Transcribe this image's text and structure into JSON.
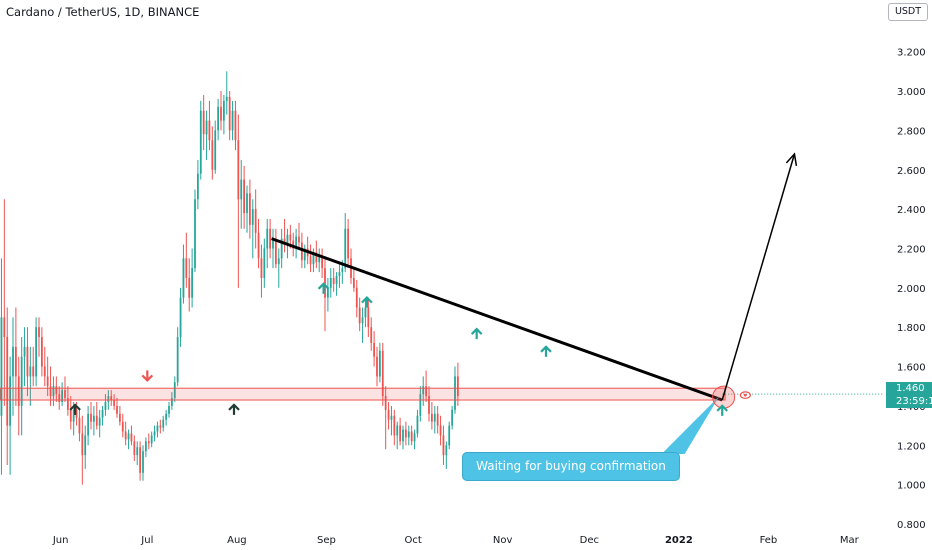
{
  "title": "Cardano / TetherUS, 1D, BINANCE",
  "unit": "USDT",
  "last_price": "1.460",
  "countdown": "23:59:1",
  "annotation": "Waiting for buying confirmation",
  "colors": {
    "up": "#26a69a",
    "down": "#ef5350",
    "zone": "#ef5350",
    "callout": "#4fc3e6",
    "trendline": "#000000"
  },
  "chart_data": {
    "type": "candlestick",
    "ylim": [
      0.8,
      3.3
    ],
    "y_ticks": [
      "3.200",
      "3.000",
      "2.800",
      "2.600",
      "2.400",
      "2.200",
      "2.000",
      "1.800",
      "1.600",
      "1.400",
      "1.200",
      "1.000",
      "0.800"
    ],
    "x_ticks": [
      {
        "label": "Jun",
        "day": 33
      },
      {
        "label": "Jul",
        "day": 63
      },
      {
        "label": "Aug",
        "day": 94
      },
      {
        "label": "Sep",
        "day": 125
      },
      {
        "label": "Oct",
        "day": 155
      },
      {
        "label": "Nov",
        "day": 186
      },
      {
        "label": "Dec",
        "day": 216
      },
      {
        "label": "2022",
        "day": 247,
        "bold": true
      },
      {
        "label": "Feb",
        "day": 278
      },
      {
        "label": "Mar",
        "day": 306
      }
    ],
    "x_range": [
      12,
      318
    ],
    "support_zone": [
      1.43,
      1.49
    ],
    "trendline": [
      {
        "day": 106,
        "price": 2.25
      },
      {
        "day": 262,
        "price": 1.43
      }
    ],
    "projection": [
      {
        "day": 262,
        "price": 1.43
      },
      {
        "day": 287,
        "price": 2.68
      }
    ],
    "marker_arrows": [
      {
        "day": 38,
        "price": 1.385,
        "dir": "up",
        "color": "#1f3b34"
      },
      {
        "day": 63,
        "price": 1.55,
        "dir": "down",
        "color": "#ef5350"
      },
      {
        "day": 93,
        "price": 1.385,
        "dir": "up",
        "color": "#1f3b34"
      },
      {
        "day": 124,
        "price": 2.0,
        "dir": "up",
        "color": "#26a69a"
      },
      {
        "day": 139,
        "price": 1.93,
        "dir": "up",
        "color": "#26a69a"
      },
      {
        "day": 177,
        "price": 1.77,
        "dir": "up",
        "color": "#26a69a"
      },
      {
        "day": 201,
        "price": 1.68,
        "dir": "up",
        "color": "#26a69a"
      },
      {
        "day": 262,
        "price": 1.38,
        "dir": "up",
        "color": "#26a69a"
      }
    ],
    "candles": [
      {
        "o": 1.35,
        "h": 2.15,
        "l": 1.05,
        "c": 1.85
      },
      {
        "o": 1.85,
        "h": 2.45,
        "l": 1.4,
        "c": 1.75
      },
      {
        "o": 1.75,
        "h": 1.9,
        "l": 1.1,
        "c": 1.3
      },
      {
        "o": 1.3,
        "h": 1.65,
        "l": 1.05,
        "c": 1.55
      },
      {
        "o": 1.55,
        "h": 1.85,
        "l": 1.35,
        "c": 1.7
      },
      {
        "o": 1.7,
        "h": 1.9,
        "l": 1.4,
        "c": 1.55
      },
      {
        "o": 1.55,
        "h": 1.65,
        "l": 1.25,
        "c": 1.4
      },
      {
        "o": 1.4,
        "h": 1.75,
        "l": 1.25,
        "c": 1.65
      },
      {
        "o": 1.65,
        "h": 1.8,
        "l": 1.5,
        "c": 1.7
      },
      {
        "o": 1.7,
        "h": 1.8,
        "l": 1.45,
        "c": 1.55
      },
      {
        "o": 1.55,
        "h": 1.7,
        "l": 1.4,
        "c": 1.6
      },
      {
        "o": 1.6,
        "h": 1.7,
        "l": 1.5,
        "c": 1.55
      },
      {
        "o": 1.55,
        "h": 1.85,
        "l": 1.5,
        "c": 1.8
      },
      {
        "o": 1.8,
        "h": 1.85,
        "l": 1.65,
        "c": 1.75
      },
      {
        "o": 1.75,
        "h": 1.8,
        "l": 1.55,
        "c": 1.6
      },
      {
        "o": 1.6,
        "h": 1.7,
        "l": 1.5,
        "c": 1.55
      },
      {
        "o": 1.55,
        "h": 1.65,
        "l": 1.45,
        "c": 1.5
      },
      {
        "o": 1.5,
        "h": 1.6,
        "l": 1.4,
        "c": 1.45
      },
      {
        "o": 1.45,
        "h": 1.55,
        "l": 1.4,
        "c": 1.5
      },
      {
        "o": 1.5,
        "h": 1.55,
        "l": 1.42,
        "c": 1.46
      },
      {
        "o": 1.46,
        "h": 1.5,
        "l": 1.38,
        "c": 1.42
      },
      {
        "o": 1.42,
        "h": 1.52,
        "l": 1.4,
        "c": 1.48
      },
      {
        "o": 1.48,
        "h": 1.55,
        "l": 1.42,
        "c": 1.44
      },
      {
        "o": 1.44,
        "h": 1.5,
        "l": 1.35,
        "c": 1.38
      },
      {
        "o": 1.38,
        "h": 1.45,
        "l": 1.28,
        "c": 1.32
      },
      {
        "o": 1.32,
        "h": 1.42,
        "l": 1.25,
        "c": 1.38
      },
      {
        "o": 1.38,
        "h": 1.42,
        "l": 1.3,
        "c": 1.34
      },
      {
        "o": 1.34,
        "h": 1.38,
        "l": 1.22,
        "c": 1.26
      },
      {
        "o": 1.26,
        "h": 1.35,
        "l": 1.0,
        "c": 1.15
      },
      {
        "o": 1.15,
        "h": 1.3,
        "l": 1.08,
        "c": 1.25
      },
      {
        "o": 1.25,
        "h": 1.4,
        "l": 1.2,
        "c": 1.36
      },
      {
        "o": 1.36,
        "h": 1.42,
        "l": 1.28,
        "c": 1.32
      },
      {
        "o": 1.32,
        "h": 1.4,
        "l": 1.25,
        "c": 1.35
      },
      {
        "o": 1.35,
        "h": 1.42,
        "l": 1.28,
        "c": 1.3
      },
      {
        "o": 1.3,
        "h": 1.38,
        "l": 1.24,
        "c": 1.34
      },
      {
        "o": 1.34,
        "h": 1.4,
        "l": 1.3,
        "c": 1.38
      },
      {
        "o": 1.38,
        "h": 1.46,
        "l": 1.35,
        "c": 1.42
      },
      {
        "o": 1.42,
        "h": 1.48,
        "l": 1.38,
        "c": 1.45
      },
      {
        "o": 1.45,
        "h": 1.48,
        "l": 1.4,
        "c": 1.43
      },
      {
        "o": 1.43,
        "h": 1.46,
        "l": 1.38,
        "c": 1.4
      },
      {
        "o": 1.4,
        "h": 1.44,
        "l": 1.34,
        "c": 1.36
      },
      {
        "o": 1.36,
        "h": 1.4,
        "l": 1.3,
        "c": 1.32
      },
      {
        "o": 1.32,
        "h": 1.36,
        "l": 1.24,
        "c": 1.27
      },
      {
        "o": 1.27,
        "h": 1.32,
        "l": 1.2,
        "c": 1.23
      },
      {
        "o": 1.23,
        "h": 1.28,
        "l": 1.18,
        "c": 1.26
      },
      {
        "o": 1.26,
        "h": 1.3,
        "l": 1.2,
        "c": 1.22
      },
      {
        "o": 1.22,
        "h": 1.25,
        "l": 1.12,
        "c": 1.15
      },
      {
        "o": 1.15,
        "h": 1.22,
        "l": 1.1,
        "c": 1.19
      },
      {
        "o": 1.19,
        "h": 1.22,
        "l": 1.02,
        "c": 1.06
      },
      {
        "o": 1.06,
        "h": 1.2,
        "l": 1.02,
        "c": 1.17
      },
      {
        "o": 1.17,
        "h": 1.24,
        "l": 1.14,
        "c": 1.22
      },
      {
        "o": 1.22,
        "h": 1.26,
        "l": 1.18,
        "c": 1.21
      },
      {
        "o": 1.21,
        "h": 1.27,
        "l": 1.19,
        "c": 1.25
      },
      {
        "o": 1.25,
        "h": 1.3,
        "l": 1.22,
        "c": 1.27
      },
      {
        "o": 1.27,
        "h": 1.32,
        "l": 1.24,
        "c": 1.3
      },
      {
        "o": 1.3,
        "h": 1.33,
        "l": 1.26,
        "c": 1.29
      },
      {
        "o": 1.29,
        "h": 1.35,
        "l": 1.27,
        "c": 1.33
      },
      {
        "o": 1.33,
        "h": 1.38,
        "l": 1.3,
        "c": 1.36
      },
      {
        "o": 1.36,
        "h": 1.42,
        "l": 1.34,
        "c": 1.4
      },
      {
        "o": 1.4,
        "h": 1.47,
        "l": 1.38,
        "c": 1.44
      },
      {
        "o": 1.44,
        "h": 1.55,
        "l": 1.42,
        "c": 1.52
      },
      {
        "o": 1.52,
        "h": 1.8,
        "l": 1.5,
        "c": 1.75
      },
      {
        "o": 1.75,
        "h": 2.0,
        "l": 1.7,
        "c": 1.95
      },
      {
        "o": 1.95,
        "h": 2.22,
        "l": 1.92,
        "c": 2.15
      },
      {
        "o": 2.15,
        "h": 2.28,
        "l": 2.0,
        "c": 2.05
      },
      {
        "o": 2.05,
        "h": 2.15,
        "l": 1.88,
        "c": 1.95
      },
      {
        "o": 1.95,
        "h": 2.2,
        "l": 1.9,
        "c": 2.1
      },
      {
        "o": 2.1,
        "h": 2.5,
        "l": 2.08,
        "c": 2.45
      },
      {
        "o": 2.45,
        "h": 2.65,
        "l": 2.4,
        "c": 2.58
      },
      {
        "o": 2.58,
        "h": 2.95,
        "l": 2.55,
        "c": 2.9
      },
      {
        "o": 2.9,
        "h": 2.98,
        "l": 2.7,
        "c": 2.78
      },
      {
        "o": 2.78,
        "h": 2.9,
        "l": 2.65,
        "c": 2.85
      },
      {
        "o": 2.85,
        "h": 2.95,
        "l": 2.7,
        "c": 2.75
      },
      {
        "o": 2.75,
        "h": 2.82,
        "l": 2.55,
        "c": 2.6
      },
      {
        "o": 2.6,
        "h": 2.85,
        "l": 2.58,
        "c": 2.8
      },
      {
        "o": 2.8,
        "h": 2.96,
        "l": 2.75,
        "c": 2.92
      },
      {
        "o": 2.92,
        "h": 3.0,
        "l": 2.8,
        "c": 2.85
      },
      {
        "o": 2.85,
        "h": 2.98,
        "l": 2.78,
        "c": 2.95
      },
      {
        "o": 2.95,
        "h": 3.1,
        "l": 2.88,
        "c": 2.97
      },
      {
        "o": 2.97,
        "h": 3.0,
        "l": 2.75,
        "c": 2.8
      },
      {
        "o": 2.8,
        "h": 2.95,
        "l": 2.75,
        "c": 2.9
      },
      {
        "o": 2.9,
        "h": 2.95,
        "l": 2.7,
        "c": 2.75
      },
      {
        "o": 2.75,
        "h": 2.88,
        "l": 2.0,
        "c": 2.45
      },
      {
        "o": 2.45,
        "h": 2.65,
        "l": 2.3,
        "c": 2.55
      },
      {
        "o": 2.55,
        "h": 2.62,
        "l": 2.3,
        "c": 2.38
      },
      {
        "o": 2.38,
        "h": 2.52,
        "l": 2.28,
        "c": 2.48
      },
      {
        "o": 2.48,
        "h": 2.55,
        "l": 2.25,
        "c": 2.32
      },
      {
        "o": 2.32,
        "h": 2.45,
        "l": 2.15,
        "c": 2.4
      },
      {
        "o": 2.4,
        "h": 2.5,
        "l": 2.2,
        "c": 2.28
      },
      {
        "o": 2.28,
        "h": 2.35,
        "l": 2.1,
        "c": 2.15
      },
      {
        "o": 2.15,
        "h": 2.22,
        "l": 1.95,
        "c": 2.05
      },
      {
        "o": 2.05,
        "h": 2.25,
        "l": 2.0,
        "c": 2.2
      },
      {
        "o": 2.2,
        "h": 2.35,
        "l": 2.1,
        "c": 2.3
      },
      {
        "o": 2.3,
        "h": 2.35,
        "l": 2.15,
        "c": 2.2
      },
      {
        "o": 2.2,
        "h": 2.3,
        "l": 2.1,
        "c": 2.25
      },
      {
        "o": 2.25,
        "h": 2.3,
        "l": 2.1,
        "c": 2.12
      },
      {
        "o": 2.12,
        "h": 2.2,
        "l": 2.0,
        "c": 2.15
      },
      {
        "o": 2.15,
        "h": 2.3,
        "l": 2.1,
        "c": 2.25
      },
      {
        "o": 2.25,
        "h": 2.35,
        "l": 2.18,
        "c": 2.22
      },
      {
        "o": 2.22,
        "h": 2.3,
        "l": 2.15,
        "c": 2.27
      },
      {
        "o": 2.27,
        "h": 2.32,
        "l": 2.2,
        "c": 2.24
      },
      {
        "o": 2.24,
        "h": 2.28,
        "l": 2.16,
        "c": 2.2
      },
      {
        "o": 2.2,
        "h": 2.3,
        "l": 2.15,
        "c": 2.26
      },
      {
        "o": 2.26,
        "h": 2.33,
        "l": 2.2,
        "c": 2.23
      },
      {
        "o": 2.23,
        "h": 2.28,
        "l": 2.1,
        "c": 2.14
      },
      {
        "o": 2.14,
        "h": 2.22,
        "l": 2.1,
        "c": 2.2
      },
      {
        "o": 2.2,
        "h": 2.26,
        "l": 2.12,
        "c": 2.16
      },
      {
        "o": 2.16,
        "h": 2.22,
        "l": 2.08,
        "c": 2.12
      },
      {
        "o": 2.12,
        "h": 2.2,
        "l": 2.08,
        "c": 2.18
      },
      {
        "o": 2.18,
        "h": 2.24,
        "l": 2.1,
        "c": 2.13
      },
      {
        "o": 2.13,
        "h": 2.2,
        "l": 2.08,
        "c": 2.16
      },
      {
        "o": 2.16,
        "h": 2.2,
        "l": 2.05,
        "c": 2.1
      },
      {
        "o": 2.1,
        "h": 2.16,
        "l": 1.78,
        "c": 1.95
      },
      {
        "o": 1.95,
        "h": 2.05,
        "l": 1.88,
        "c": 2.0
      },
      {
        "o": 2.0,
        "h": 2.1,
        "l": 1.95,
        "c": 2.05
      },
      {
        "o": 2.05,
        "h": 2.1,
        "l": 1.98,
        "c": 2.02
      },
      {
        "o": 2.02,
        "h": 2.08,
        "l": 1.96,
        "c": 2.06
      },
      {
        "o": 2.06,
        "h": 2.12,
        "l": 2.0,
        "c": 2.08
      },
      {
        "o": 2.08,
        "h": 2.14,
        "l": 2.02,
        "c": 2.1
      },
      {
        "o": 2.1,
        "h": 2.38,
        "l": 2.08,
        "c": 2.3
      },
      {
        "o": 2.3,
        "h": 2.35,
        "l": 2.1,
        "c": 2.15
      },
      {
        "o": 2.15,
        "h": 2.2,
        "l": 2.02,
        "c": 2.05
      },
      {
        "o": 2.05,
        "h": 2.1,
        "l": 1.98,
        "c": 2.0
      },
      {
        "o": 2.0,
        "h": 2.04,
        "l": 1.85,
        "c": 1.9
      },
      {
        "o": 1.9,
        "h": 1.95,
        "l": 1.78,
        "c": 1.82
      },
      {
        "o": 1.82,
        "h": 1.9,
        "l": 1.72,
        "c": 1.85
      },
      {
        "o": 1.85,
        "h": 1.95,
        "l": 1.8,
        "c": 1.9
      },
      {
        "o": 1.9,
        "h": 1.95,
        "l": 1.75,
        "c": 1.8
      },
      {
        "o": 1.8,
        "h": 1.85,
        "l": 1.68,
        "c": 1.72
      },
      {
        "o": 1.72,
        "h": 1.78,
        "l": 1.6,
        "c": 1.65
      },
      {
        "o": 1.65,
        "h": 1.7,
        "l": 1.5,
        "c": 1.55
      },
      {
        "o": 1.55,
        "h": 1.72,
        "l": 1.52,
        "c": 1.68
      },
      {
        "o": 1.68,
        "h": 1.72,
        "l": 1.4,
        "c": 1.45
      },
      {
        "o": 1.45,
        "h": 1.5,
        "l": 1.18,
        "c": 1.38
      },
      {
        "o": 1.38,
        "h": 1.42,
        "l": 1.28,
        "c": 1.33
      },
      {
        "o": 1.33,
        "h": 1.4,
        "l": 1.25,
        "c": 1.35
      },
      {
        "o": 1.35,
        "h": 1.38,
        "l": 1.2,
        "c": 1.25
      },
      {
        "o": 1.25,
        "h": 1.32,
        "l": 1.18,
        "c": 1.3
      },
      {
        "o": 1.3,
        "h": 1.34,
        "l": 1.2,
        "c": 1.22
      },
      {
        "o": 1.22,
        "h": 1.3,
        "l": 1.18,
        "c": 1.28
      },
      {
        "o": 1.28,
        "h": 1.32,
        "l": 1.2,
        "c": 1.24
      },
      {
        "o": 1.24,
        "h": 1.3,
        "l": 1.2,
        "c": 1.27
      },
      {
        "o": 1.27,
        "h": 1.3,
        "l": 1.2,
        "c": 1.22
      },
      {
        "o": 1.22,
        "h": 1.28,
        "l": 1.18,
        "c": 1.26
      },
      {
        "o": 1.26,
        "h": 1.38,
        "l": 1.24,
        "c": 1.35
      },
      {
        "o": 1.35,
        "h": 1.5,
        "l": 1.32,
        "c": 1.46
      },
      {
        "o": 1.46,
        "h": 1.55,
        "l": 1.4,
        "c": 1.5
      },
      {
        "o": 1.5,
        "h": 1.58,
        "l": 1.42,
        "c": 1.45
      },
      {
        "o": 1.45,
        "h": 1.5,
        "l": 1.32,
        "c": 1.36
      },
      {
        "o": 1.36,
        "h": 1.42,
        "l": 1.28,
        "c": 1.32
      },
      {
        "o": 1.32,
        "h": 1.4,
        "l": 1.26,
        "c": 1.36
      },
      {
        "o": 1.36,
        "h": 1.4,
        "l": 1.26,
        "c": 1.3
      },
      {
        "o": 1.3,
        "h": 1.35,
        "l": 1.2,
        "c": 1.25
      },
      {
        "o": 1.25,
        "h": 1.3,
        "l": 1.1,
        "c": 1.15
      },
      {
        "o": 1.15,
        "h": 1.22,
        "l": 1.08,
        "c": 1.2
      },
      {
        "o": 1.2,
        "h": 1.32,
        "l": 1.18,
        "c": 1.3
      },
      {
        "o": 1.3,
        "h": 1.4,
        "l": 1.28,
        "c": 1.38
      },
      {
        "o": 1.38,
        "h": 1.6,
        "l": 1.36,
        "c": 1.55
      },
      {
        "o": 1.55,
        "h": 1.62,
        "l": 1.4,
        "c": 1.45
      }
    ]
  }
}
